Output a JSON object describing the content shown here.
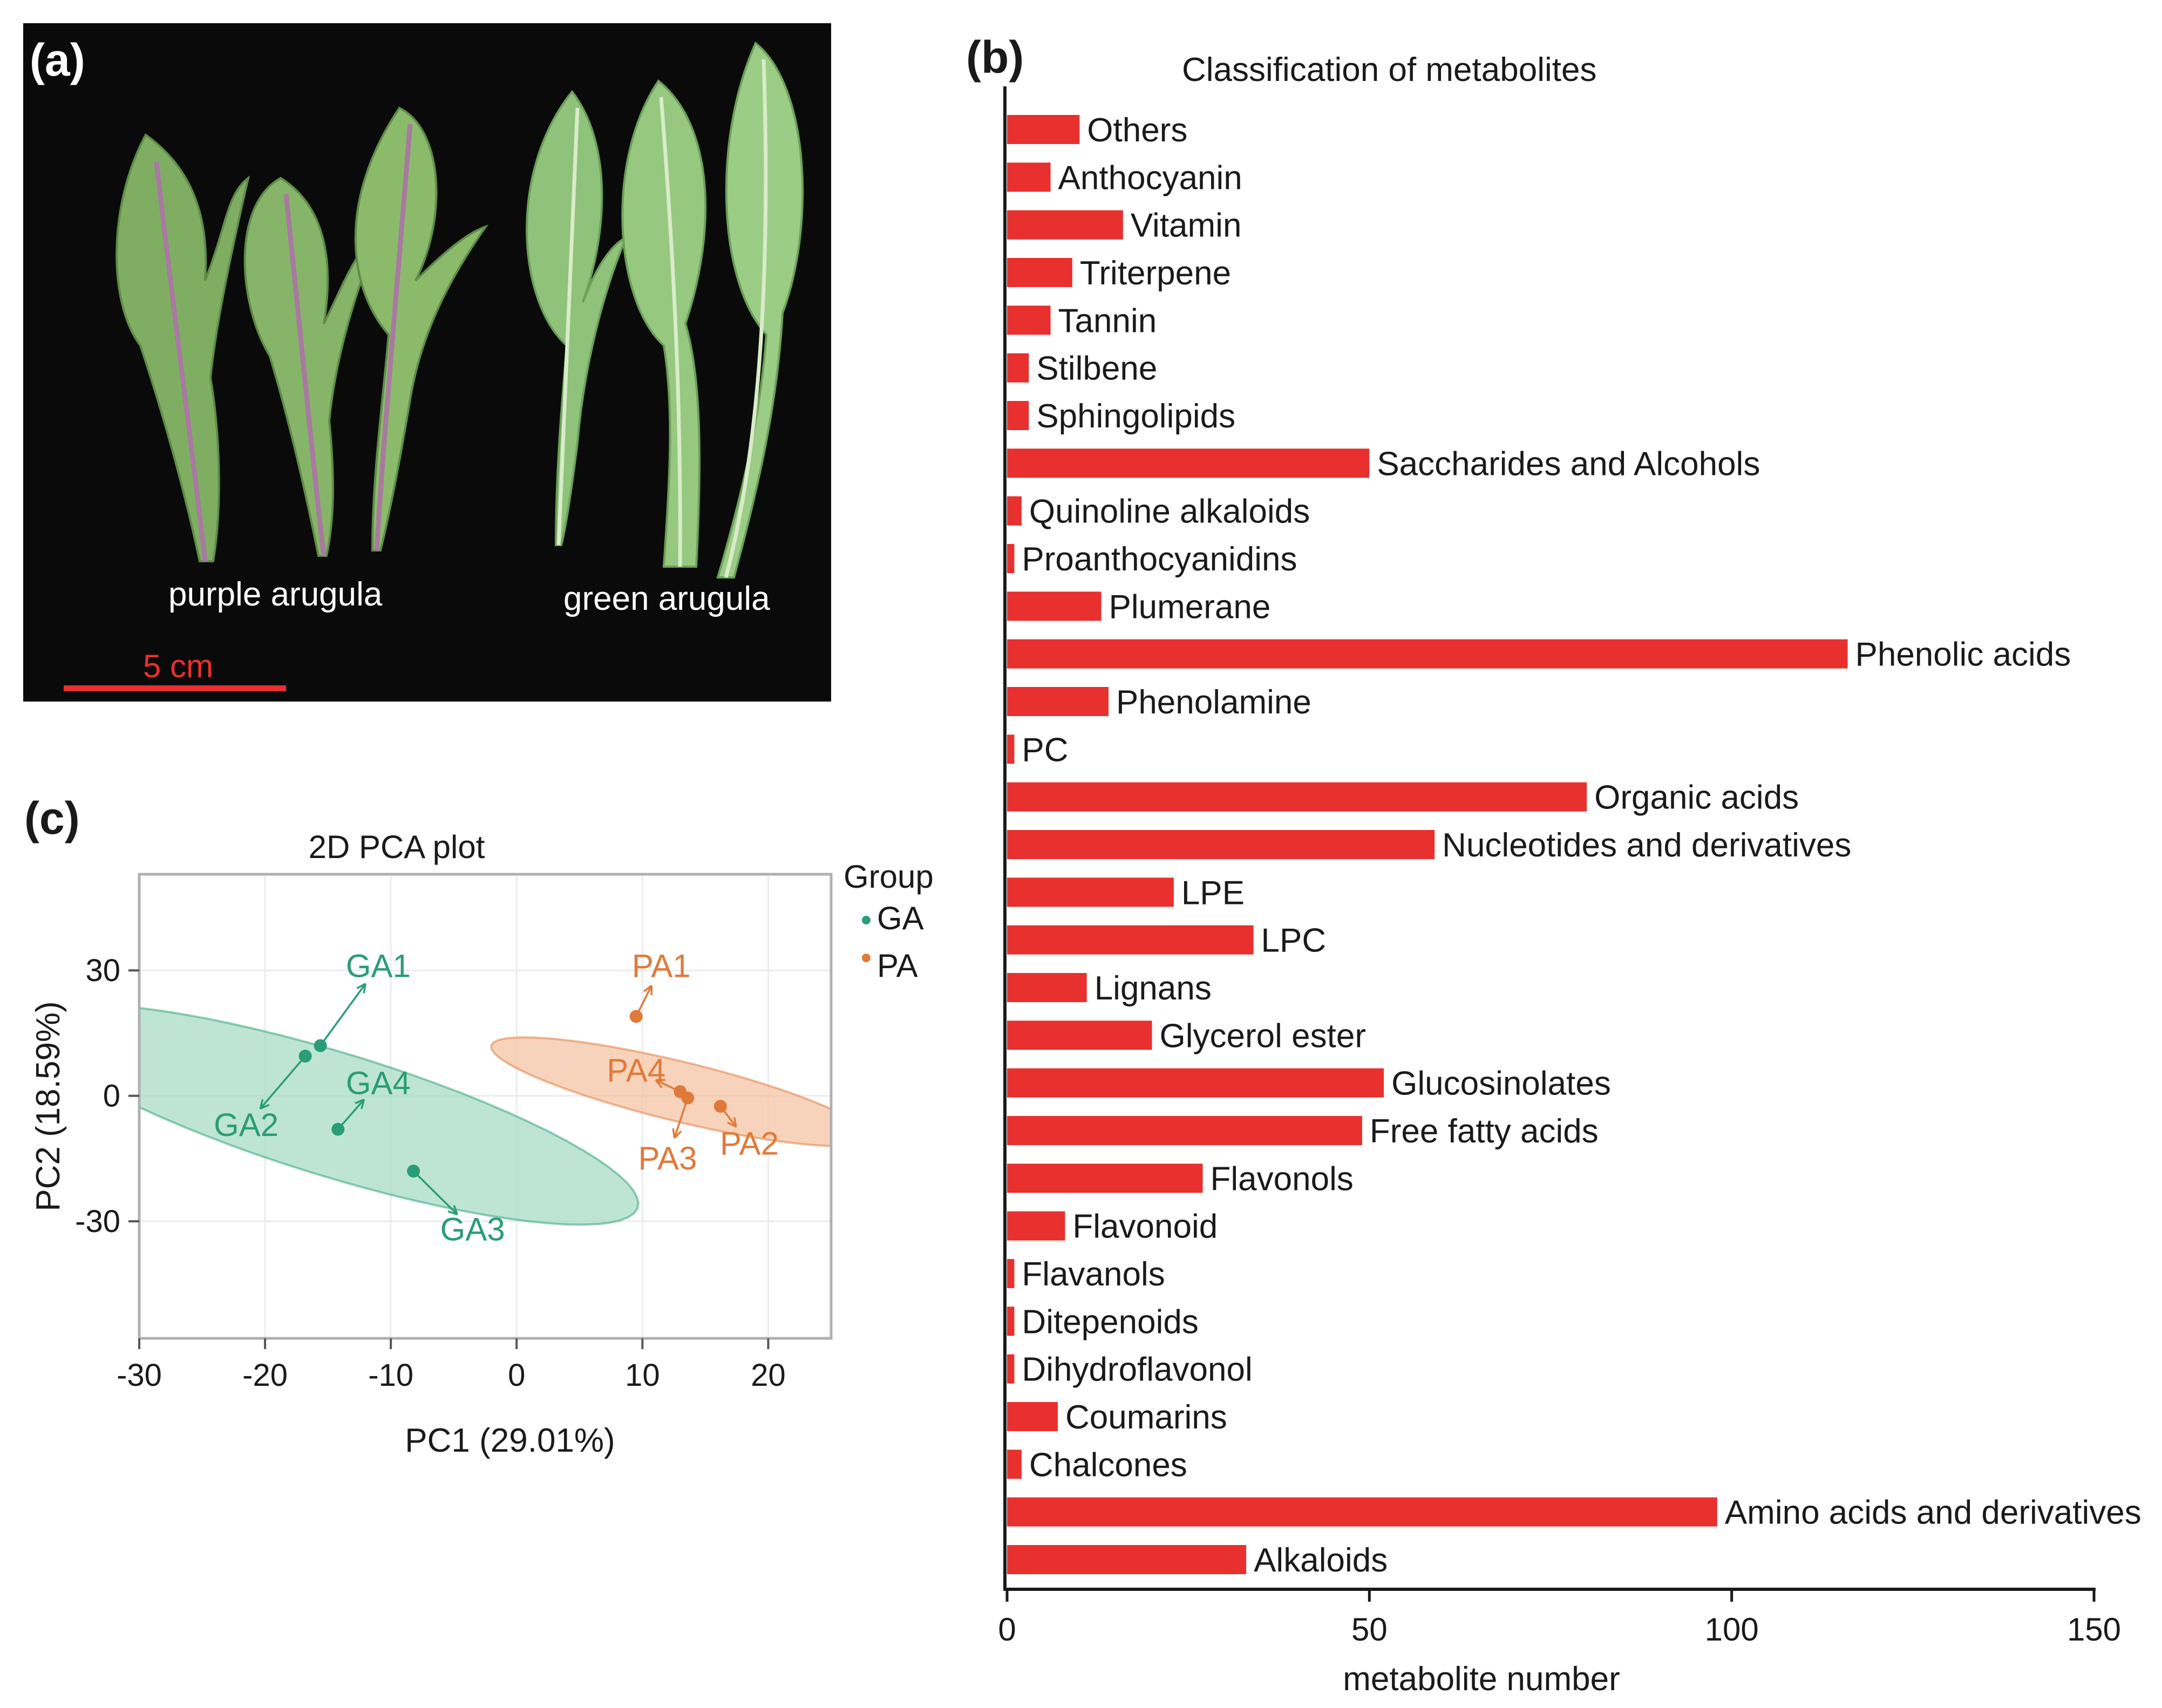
{
  "panels": {
    "a": {
      "label": "(a)",
      "caption_purple": "purple arugula",
      "caption_green": "green arugula",
      "scale_bar_label": "5 cm"
    },
    "b": {
      "label": "(b)"
    },
    "c": {
      "label": "(c)"
    }
  },
  "colors": {
    "bar": "#e8302e",
    "ga": "#2a9d78",
    "ga_fill": "#a8dcc6",
    "pa": "#e07a3a",
    "pa_fill": "#f6c4a4",
    "photo_bg": "#0a0a0a",
    "scale_bar": "#e8302e"
  },
  "chart_data": [
    {
      "type": "bar",
      "orientation": "horizontal",
      "title": "Classification of  metabolites",
      "xlabel": "metabolite number",
      "ylabel": "",
      "xlim": [
        0,
        150
      ],
      "xticks": [
        0,
        50,
        100,
        150
      ],
      "categories": [
        "Others",
        "Anthocyanin",
        "Vitamin",
        "Triterpene",
        "Tannin",
        "Stilbene",
        "Sphingolipids",
        "Saccharides and Alcohols",
        "Quinoline alkaloids",
        "Proanthocyanidins",
        "Plumerane",
        "Phenolic acids",
        "Phenolamine",
        "PC",
        "Organic acids",
        "Nucleotides and derivatives",
        "LPE",
        "LPC",
        "Lignans",
        "Glycerol ester",
        "Glucosinolates",
        "Free fatty acids",
        "Flavonols",
        "Flavonoid",
        "Flavanols",
        "Ditepenoids",
        "Dihydroflavonol",
        "Coumarins",
        "Chalcones",
        "Amino acids and derivatives",
        "Alkaloids"
      ],
      "values": [
        10,
        6,
        16,
        9,
        6,
        3,
        3,
        50,
        2,
        1,
        13,
        116,
        14,
        1,
        80,
        59,
        23,
        34,
        11,
        20,
        52,
        49,
        27,
        8,
        1,
        1,
        1,
        7,
        2,
        98,
        33
      ]
    },
    {
      "type": "scatter",
      "title": "2D PCA plot",
      "xlabel": "PC1 (29.01%)",
      "ylabel": "PC2 (18.59%)",
      "xlim": [
        -30,
        25
      ],
      "ylim": [
        -58,
        53
      ],
      "xticks": [
        -30,
        -20,
        -10,
        0,
        10,
        20
      ],
      "yticks": [
        30,
        0,
        -30
      ],
      "legend_title": "Group",
      "legend_position": "right",
      "groups": [
        {
          "name": "GA",
          "ellipse": {
            "cx": -14.5,
            "cy": -4.5,
            "rx": 34,
            "ry": 11,
            "angle_deg": -48
          },
          "points": [
            {
              "label": "GA1",
              "x": -15.6,
              "y": 12,
              "lx": -11,
              "ly": 31
            },
            {
              "label": "GA2",
              "x": -16.8,
              "y": 9.5,
              "lx": -21.5,
              "ly": -7
            },
            {
              "label": "GA4",
              "x": -14.2,
              "y": -8,
              "lx": -11,
              "ly": 3
            },
            {
              "label": "GA3",
              "x": -8.2,
              "y": -18,
              "lx": -3.5,
              "ly": -32
            }
          ]
        },
        {
          "name": "PA",
          "ellipse": {
            "cx": 13,
            "cy": 1,
            "rx": 19,
            "ry": 5.8,
            "angle_deg": -40
          },
          "points": [
            {
              "label": "PA1",
              "x": 9.5,
              "y": 19,
              "lx": 11.5,
              "ly": 31
            },
            {
              "label": "PA4",
              "x": 13,
              "y": 1,
              "lx": 9.5,
              "ly": 6
            },
            {
              "label": "PA3",
              "x": 13.6,
              "y": -0.5,
              "lx": 12,
              "ly": -15
            },
            {
              "label": "PA2",
              "x": 16.2,
              "y": -2.5,
              "lx": 18.5,
              "ly": -11.5
            }
          ]
        }
      ]
    }
  ]
}
